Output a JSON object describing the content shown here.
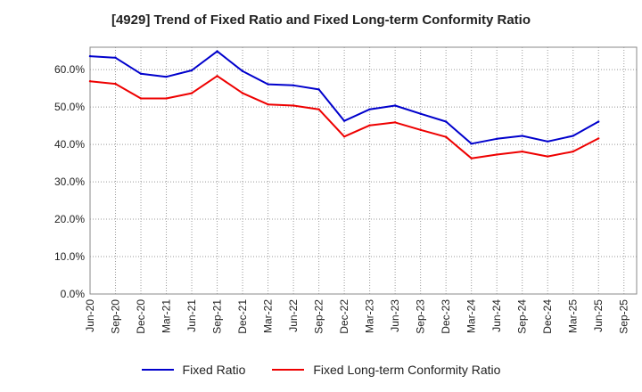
{
  "chart_data": {
    "type": "line",
    "title": "[4929]  Trend of Fixed Ratio and Fixed Long-term Conformity Ratio",
    "xlabel": "",
    "ylabel": "",
    "categories": [
      "Jun-20",
      "Sep-20",
      "Dec-20",
      "Mar-21",
      "Jun-21",
      "Sep-21",
      "Dec-21",
      "Mar-22",
      "Jun-22",
      "Sep-22",
      "Dec-22",
      "Mar-23",
      "Jun-23",
      "Sep-23",
      "Dec-23",
      "Mar-24",
      "Jun-24",
      "Sep-24",
      "Dec-24",
      "Mar-25",
      "Jun-25",
      "Sep-25"
    ],
    "ylim": [
      0,
      66
    ],
    "yticks": [
      0,
      10,
      20,
      30,
      40,
      50,
      60
    ],
    "ytick_labels": [
      "0.0%",
      "10.0%",
      "20.0%",
      "30.0%",
      "40.0%",
      "50.0%",
      "60.0%"
    ],
    "grid": true,
    "legend_position": "bottom",
    "series": [
      {
        "name": "Fixed Ratio",
        "color": "#0000cc",
        "values": [
          63.6,
          63.2,
          58.9,
          58.1,
          59.8,
          64.9,
          59.6,
          56.1,
          55.8,
          54.7,
          46.3,
          49.4,
          50.4,
          48.2,
          46.1,
          40.2,
          41.5,
          42.3,
          40.8,
          42.3,
          46.1,
          null
        ]
      },
      {
        "name": "Fixed Long-term Conformity Ratio",
        "color": "#ee0000",
        "values": [
          56.9,
          56.2,
          52.3,
          52.3,
          53.7,
          58.3,
          53.7,
          50.7,
          50.4,
          49.4,
          42.1,
          45.1,
          45.9,
          43.9,
          42.0,
          36.3,
          37.3,
          38.1,
          36.8,
          38.1,
          41.6,
          null
        ]
      }
    ]
  }
}
